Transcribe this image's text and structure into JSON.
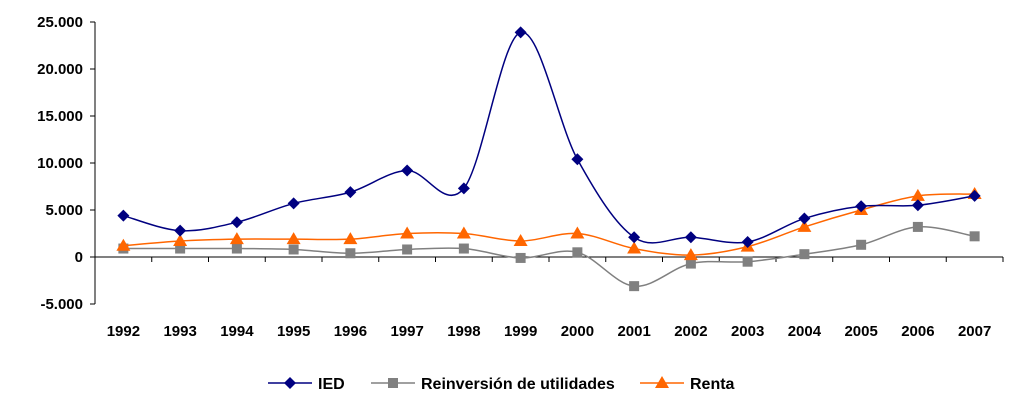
{
  "chart_data": {
    "type": "line",
    "categories": [
      "1992",
      "1993",
      "1994",
      "1995",
      "1996",
      "1997",
      "1998",
      "1999",
      "2000",
      "2001",
      "2002",
      "2003",
      "2004",
      "2005",
      "2006",
      "2007"
    ],
    "y_tick_labels": [
      "25.000",
      "20.000",
      "15.000",
      "10.000",
      "5.000",
      "0",
      "-5.000"
    ],
    "y_ticks": [
      25000,
      20000,
      15000,
      10000,
      5000,
      0,
      -5000
    ],
    "ylim": [
      -5000,
      25000
    ],
    "grid": false,
    "legend_position": "bottom",
    "series": [
      {
        "name": "IED",
        "color": "#000080",
        "marker": "diamond",
        "values": [
          4400,
          2800,
          3700,
          5700,
          6900,
          9200,
          7300,
          23900,
          10400,
          2100,
          2100,
          1600,
          4100,
          5400,
          5500,
          6500
        ]
      },
      {
        "name": "Reinversión de utilidades",
        "color": "#808080",
        "marker": "square",
        "values": [
          900,
          900,
          900,
          800,
          400,
          800,
          900,
          -100,
          500,
          -3100,
          -700,
          -500,
          300,
          1300,
          3200,
          2200
        ]
      },
      {
        "name": "Renta",
        "color": "#FF6600",
        "marker": "triangle",
        "values": [
          1200,
          1700,
          1900,
          1900,
          1900,
          2500,
          2500,
          1700,
          2500,
          900,
          200,
          1100,
          3200,
          5000,
          6500,
          6700
        ]
      }
    ]
  }
}
